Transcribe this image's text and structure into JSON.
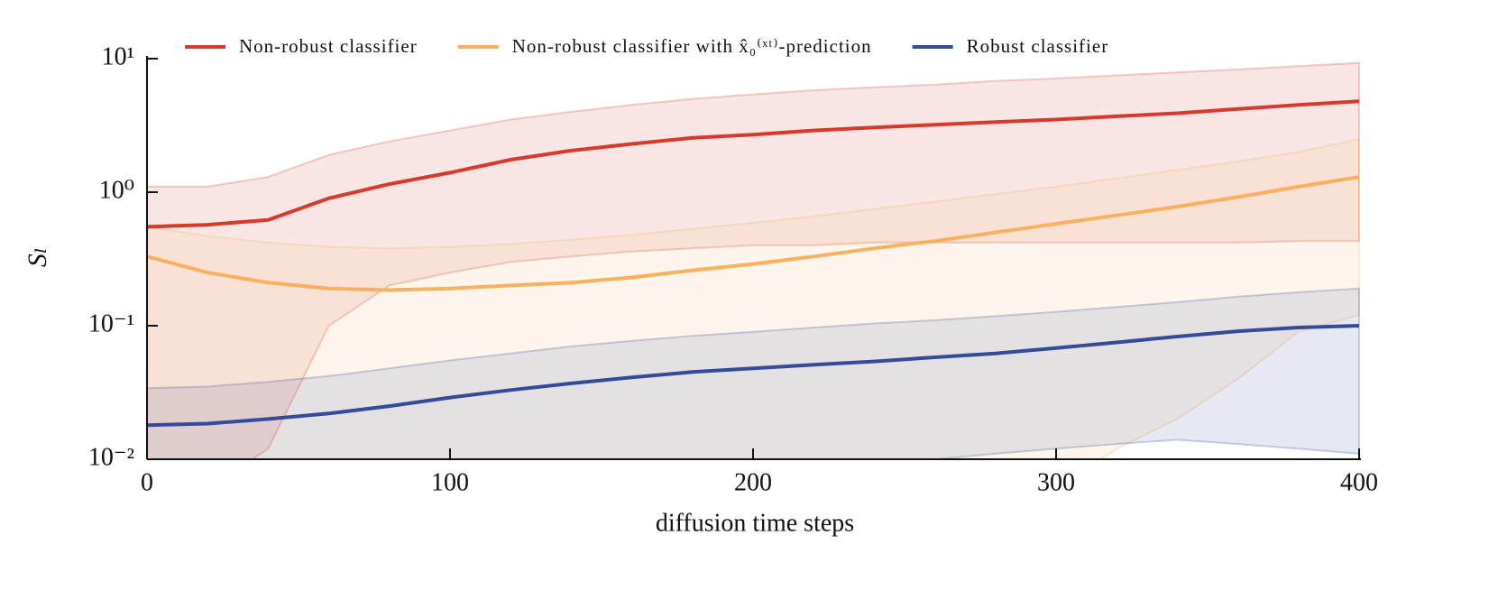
{
  "chart_data": {
    "type": "line",
    "x_label": "diffusion time steps",
    "y_label": "Sₗ",
    "yscale": "log",
    "legend": "top",
    "xlim": [
      0,
      400
    ],
    "xticks": [
      0,
      100,
      200,
      300,
      400
    ],
    "ylim": [
      0.01,
      10
    ],
    "yticks": [
      {
        "value": 0.01,
        "label": "10⁻²"
      },
      {
        "value": 0.1,
        "label": "10⁻¹"
      },
      {
        "value": 1,
        "label": "10⁰"
      },
      {
        "value": 10,
        "label": "10¹"
      }
    ],
    "x": [
      0,
      20,
      40,
      60,
      80,
      100,
      120,
      140,
      160,
      180,
      200,
      220,
      240,
      260,
      280,
      300,
      320,
      340,
      360,
      380,
      400
    ],
    "series": [
      {
        "name": "Non-robust classifier",
        "color": "#d73a2c",
        "values": [
          0.55,
          0.57,
          0.62,
          0.9,
          1.15,
          1.4,
          1.75,
          2.05,
          2.3,
          2.55,
          2.7,
          2.9,
          3.05,
          3.2,
          3.35,
          3.5,
          3.7,
          3.9,
          4.2,
          4.5,
          4.8
        ],
        "upper": [
          1.1,
          1.1,
          1.3,
          1.9,
          2.4,
          2.9,
          3.5,
          4.0,
          4.5,
          5.0,
          5.4,
          5.8,
          6.1,
          6.4,
          6.8,
          7.1,
          7.5,
          7.9,
          8.3,
          8.8,
          9.3
        ],
        "lower": [
          0.005,
          0.006,
          0.012,
          0.1,
          0.2,
          0.25,
          0.3,
          0.33,
          0.36,
          0.38,
          0.4,
          0.4,
          0.42,
          0.42,
          0.42,
          0.42,
          0.42,
          0.42,
          0.42,
          0.43,
          0.43
        ]
      },
      {
        "name": "Non-robust classifier with x̂₀⁽ˣᵗ⁾-prediction",
        "color": "#f9b160",
        "values": [
          0.33,
          0.25,
          0.21,
          0.19,
          0.185,
          0.19,
          0.2,
          0.21,
          0.23,
          0.26,
          0.29,
          0.33,
          0.38,
          0.43,
          0.5,
          0.58,
          0.67,
          0.78,
          0.92,
          1.1,
          1.3
        ],
        "upper": [
          0.55,
          0.47,
          0.42,
          0.39,
          0.38,
          0.39,
          0.41,
          0.44,
          0.48,
          0.53,
          0.59,
          0.66,
          0.75,
          0.85,
          0.97,
          1.1,
          1.27,
          1.47,
          1.7,
          2.0,
          2.5
        ],
        "lower": [
          0.005,
          0.005,
          0.005,
          0.005,
          0.005,
          0.005,
          0.005,
          0.005,
          0.005,
          0.005,
          0.005,
          0.005,
          0.005,
          0.005,
          0.005,
          0.006,
          0.012,
          0.02,
          0.04,
          0.09,
          0.12
        ]
      },
      {
        "name": "Robust classifier",
        "color": "#354b9a",
        "values": [
          0.018,
          0.0185,
          0.02,
          0.022,
          0.025,
          0.029,
          0.033,
          0.037,
          0.041,
          0.045,
          0.048,
          0.051,
          0.054,
          0.058,
          0.062,
          0.068,
          0.075,
          0.083,
          0.091,
          0.097,
          0.1
        ],
        "upper": [
          0.034,
          0.035,
          0.038,
          0.042,
          0.048,
          0.055,
          0.062,
          0.07,
          0.077,
          0.084,
          0.09,
          0.097,
          0.104,
          0.11,
          0.118,
          0.127,
          0.138,
          0.15,
          0.165,
          0.178,
          0.19
        ],
        "lower": [
          0.005,
          0.005,
          0.005,
          0.005,
          0.005,
          0.005,
          0.005,
          0.005,
          0.005,
          0.005,
          0.005,
          0.005,
          0.009,
          0.01,
          0.011,
          0.012,
          0.013,
          0.014,
          0.013,
          0.012,
          0.011
        ]
      }
    ]
  }
}
